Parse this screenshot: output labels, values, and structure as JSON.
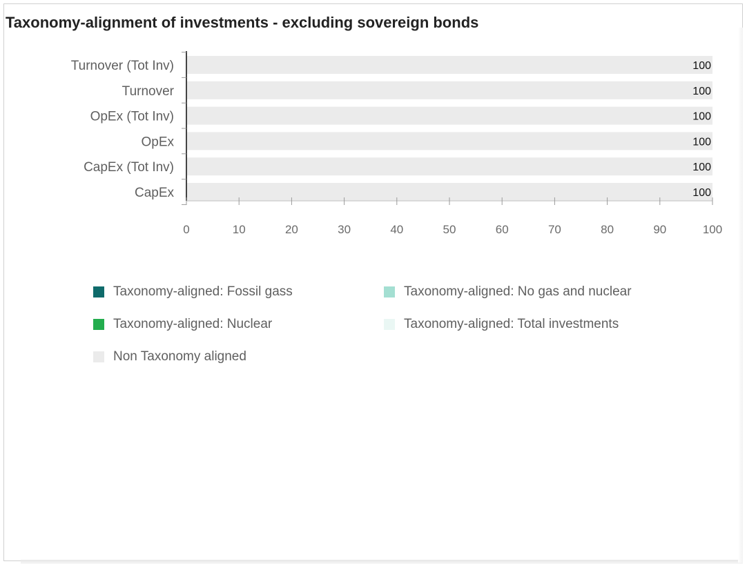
{
  "page": {
    "title": "Taxonomy-alignment of investments - excluding sovereign bonds"
  },
  "colors": {
    "non_aligned": "#ebebeb",
    "fossil_gas": "#0f6b6b",
    "no_gas_nuclear": "#a4dfd2",
    "nuclear": "#23ad4e",
    "total_investments": "#eaf7f4"
  },
  "chart_data": {
    "type": "bar",
    "orientation": "horizontal",
    "stacked": true,
    "title": "Taxonomy-alignment of investments - excluding sovereign bonds",
    "categories": [
      "Turnover (Tot Inv)",
      "Turnover",
      "OpEx (Tot Inv)",
      "OpEx",
      "CapEx (Tot Inv)",
      "CapEx"
    ],
    "series": [
      {
        "name": "Taxonomy-aligned: Fossil gass",
        "values": [
          0,
          0,
          0,
          0,
          0,
          0
        ]
      },
      {
        "name": "Taxonomy-aligned: No gas and nuclear",
        "values": [
          0,
          0,
          0,
          0,
          0,
          0
        ]
      },
      {
        "name": "Taxonomy-aligned: Nuclear",
        "values": [
          0,
          0,
          0,
          0,
          0,
          0
        ]
      },
      {
        "name": "Taxonomy-aligned: Total investments",
        "values": [
          0,
          0,
          0,
          0,
          0,
          0
        ]
      },
      {
        "name": "Non Taxonomy aligned",
        "values": [
          100,
          100,
          100,
          100,
          100,
          100
        ]
      }
    ],
    "data_labels": [
      "100",
      "100",
      "100",
      "100",
      "100",
      "100"
    ],
    "xlim": [
      0,
      100
    ],
    "xticks": [
      "0",
      "10",
      "20",
      "30",
      "40",
      "50",
      "60",
      "70",
      "80",
      "90",
      "100"
    ],
    "xlabel": "",
    "ylabel": "",
    "grid": false,
    "legend_position": "bottom"
  },
  "legend": [
    {
      "label": "Taxonomy-aligned: Fossil gass",
      "color": "#0f6b6b"
    },
    {
      "label": "Taxonomy-aligned: No gas and nuclear",
      "color": "#a4dfd2"
    },
    {
      "label": "Taxonomy-aligned: Nuclear",
      "color": "#23ad4e"
    },
    {
      "label": "Taxonomy-aligned: Total investments",
      "color": "#eaf7f4"
    },
    {
      "label": "Non Taxonomy aligned",
      "color": "#ebebeb"
    }
  ]
}
